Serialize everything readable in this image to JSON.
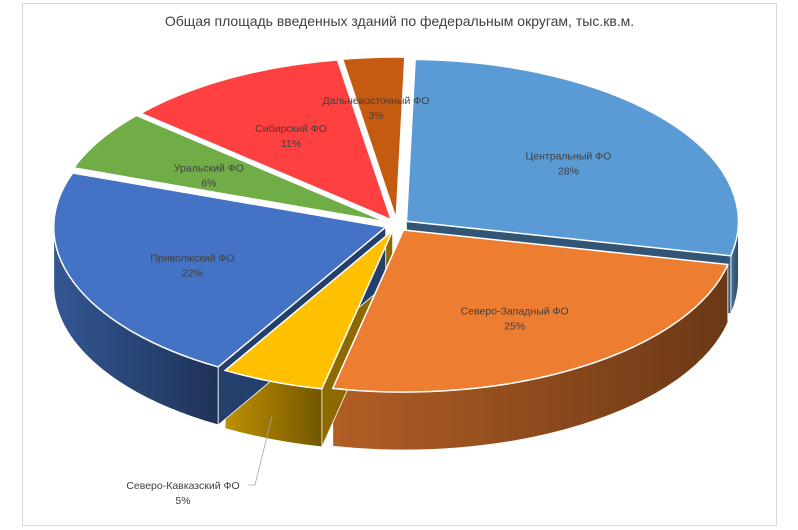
{
  "chart_data": {
    "type": "pie",
    "title": "Общая площадь введенных зданий по федеральным округам, тыс.кв.м.",
    "slices": [
      {
        "label": "Центральный ФО",
        "value": 28,
        "pct_label": "28%",
        "color": "#5B9BD5"
      },
      {
        "label": "Северо-Западный ФО",
        "value": 25,
        "pct_label": "25%",
        "color": "#ED7D31"
      },
      {
        "label": "Северо-Кавказский ФО",
        "value": 5,
        "pct_label": "5%",
        "color": "#FFC000"
      },
      {
        "label": "Приволжский ФО",
        "value": 22,
        "pct_label": "22%",
        "color": "#4472C4"
      },
      {
        "label": "Уральский ФО",
        "value": 6,
        "pct_label": "6%",
        "color": "#70AD47"
      },
      {
        "label": "Сибирский ФО",
        "value": 11,
        "pct_label": "11%",
        "color": "#FF4040"
      },
      {
        "label": "Дальневосточный ФО",
        "value": 3,
        "pct_label": "3%",
        "color": "#C55A11"
      }
    ]
  }
}
